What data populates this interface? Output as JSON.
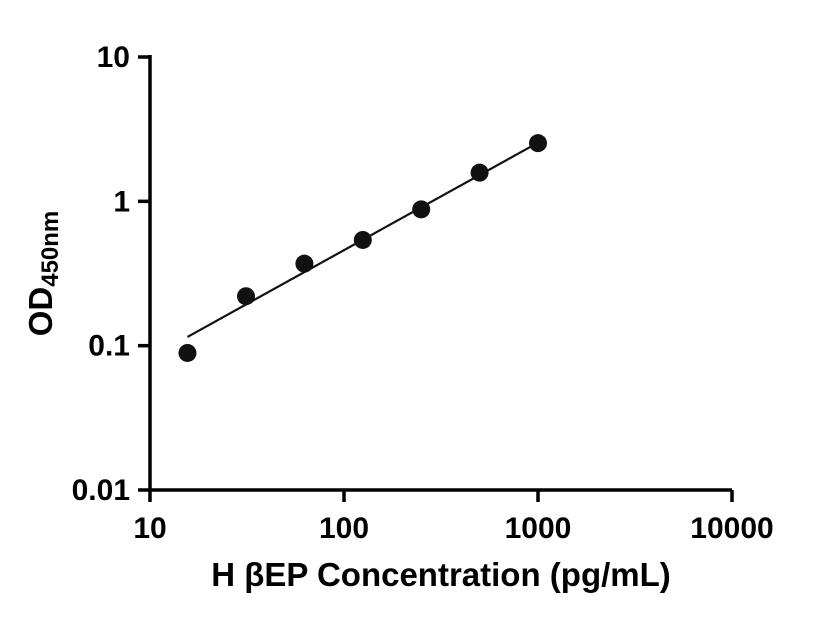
{
  "figure": {
    "background": "#ffffff"
  },
  "chart_data": {
    "type": "scatter",
    "title": "",
    "xlabel": "H βEP Concentration (pg/mL)",
    "ylabel_main": "OD",
    "ylabel_sub": "450nm",
    "xscale": "log",
    "yscale": "log",
    "xlim": [
      10,
      10000
    ],
    "ylim": [
      0.01,
      10
    ],
    "grid": false,
    "legend": "none",
    "x_ticks": [
      {
        "value": 10,
        "label": "10"
      },
      {
        "value": 100,
        "label": "100"
      },
      {
        "value": 1000,
        "label": "1000"
      },
      {
        "value": 10000,
        "label": "10000"
      }
    ],
    "y_ticks": [
      {
        "value": 0.01,
        "label": "0.01"
      },
      {
        "value": 0.1,
        "label": "0.1"
      },
      {
        "value": 1,
        "label": "1"
      },
      {
        "value": 10,
        "label": "10"
      }
    ],
    "series": [
      {
        "name": "standard-curve-points",
        "x": [
          15.6,
          31.25,
          62.5,
          125,
          250,
          500,
          1000
        ],
        "y": [
          0.089,
          0.22,
          0.37,
          0.54,
          0.88,
          1.58,
          2.53
        ]
      }
    ],
    "fit_line": {
      "x1": 15.6,
      "y1": 0.115,
      "x2": 1000,
      "y2": 2.55
    },
    "marker_radius": 9,
    "marker_color": "#111111",
    "line_color": "#111111",
    "line_width": 2.2,
    "axis_color": "#000000",
    "axis_width": 3.5,
    "tick_length": 12
  }
}
